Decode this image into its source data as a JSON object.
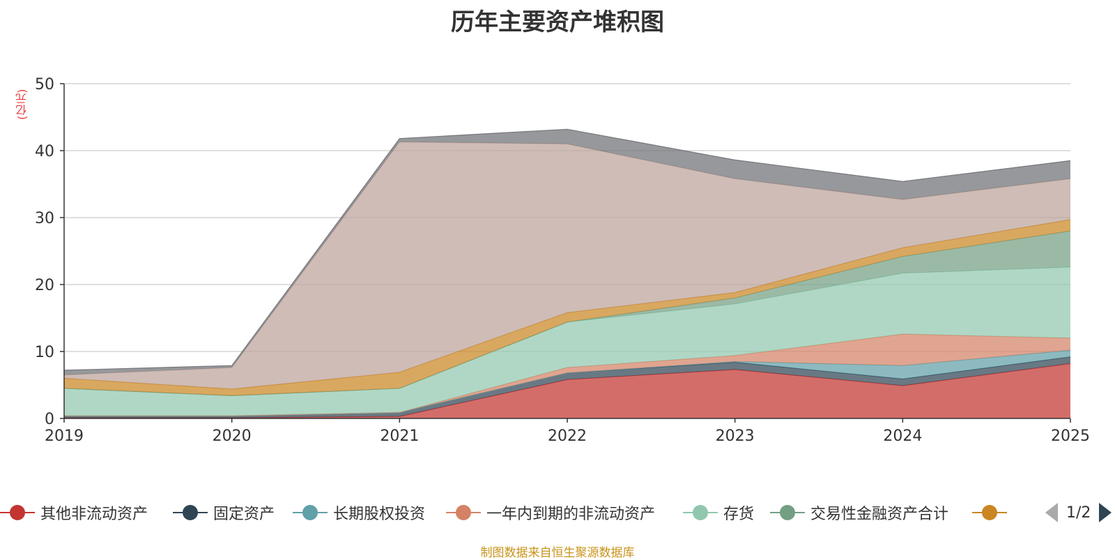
{
  "chart_data": {
    "type": "area",
    "stacked": true,
    "title": "历年主要资产堆积图",
    "ylabel": "(亿元)",
    "xlabel": "",
    "categories": [
      "2019",
      "2020",
      "2021",
      "2022",
      "2023",
      "2024",
      "2025"
    ],
    "ylim": [
      0,
      50
    ],
    "yticks": [
      0,
      10,
      20,
      30,
      40,
      50
    ],
    "grid": true,
    "series": [
      {
        "name": "其他非流动资产",
        "color": "#c23531",
        "values": [
          0.1,
          0.1,
          0.3,
          5.8,
          7.3,
          4.9,
          8.2
        ]
      },
      {
        "name": "固定资产",
        "color": "#2f4554",
        "values": [
          0.3,
          0.3,
          0.6,
          1.0,
          1.1,
          1.0,
          1.0
        ]
      },
      {
        "name": "长期股权投资",
        "color": "#61a0a8",
        "values": [
          0.0,
          0.0,
          0.0,
          0.0,
          0.1,
          2.0,
          1.0
        ]
      },
      {
        "name": "一年内到期的非流动资产",
        "color": "#d48265",
        "values": [
          0.0,
          0.0,
          0.0,
          0.8,
          0.9,
          4.7,
          1.8
        ]
      },
      {
        "name": "存货",
        "color": "#91c7ae",
        "values": [
          4.1,
          3.0,
          3.6,
          6.8,
          7.7,
          9.1,
          10.6
        ]
      },
      {
        "name": "交易性金融资产合计",
        "color": "#749f83",
        "values": [
          0.0,
          0.0,
          0.0,
          0.0,
          0.9,
          2.5,
          5.4
        ]
      },
      {
        "name": "",
        "color": "#ca8622",
        "values": [
          1.5,
          1.0,
          2.4,
          1.4,
          0.8,
          1.3,
          1.7
        ]
      },
      {
        "name": "",
        "color": "#bda29a",
        "values": [
          0.5,
          3.2,
          34.4,
          25.2,
          17.0,
          7.2,
          6.1
        ]
      },
      {
        "name": "",
        "color": "#6e7074",
        "values": [
          0.7,
          0.3,
          0.5,
          2.2,
          2.8,
          2.7,
          2.7
        ]
      }
    ]
  },
  "legend": {
    "page": "1/2",
    "items": [
      {
        "label": "其他非流动资产",
        "color": "#c23531"
      },
      {
        "label": "固定资产",
        "color": "#2f4554"
      },
      {
        "label": "长期股权投资",
        "color": "#61a0a8"
      },
      {
        "label": "一年内到期的非流动资产",
        "color": "#d48265"
      },
      {
        "label": "存货",
        "color": "#91c7ae"
      },
      {
        "label": "交易性金融资产合计",
        "color": "#749f83"
      },
      {
        "label": "",
        "color": "#ca8622"
      }
    ]
  },
  "footer": {
    "source": "制图数据来自恒生聚源数据库"
  }
}
